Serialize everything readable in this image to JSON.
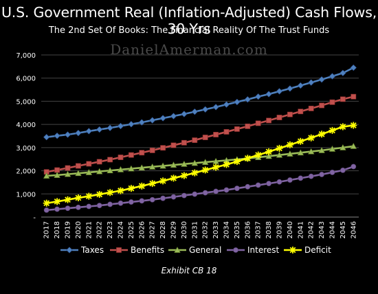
{
  "title": "U.S. Government Real (Inflation-Adjusted) Cash Flows, 30 Yrs",
  "subtitle": "The 2nd Set Of Books: The Financial Reality Of The Trust Funds",
  "watermark": "DanielAmerman.com",
  "exhibit": "Exhibit CB 18",
  "chart_data": {
    "type": "line",
    "title": "U.S. Government Real (Inflation-Adjusted) Cash Flows, 30 Yrs",
    "subtitle": "The 2nd Set Of Books: The Financial Reality Of The Trust Funds",
    "x": [
      "2017",
      "2018",
      "2019",
      "2020",
      "2021",
      "2022",
      "2023",
      "2024",
      "2025",
      "2026",
      "2027",
      "2028",
      "2029",
      "2030",
      "2031",
      "2032",
      "2033",
      "2034",
      "2035",
      "2036",
      "2037",
      "2038",
      "2039",
      "2040",
      "2041",
      "2042",
      "2043",
      "2044",
      "2045",
      "2046"
    ],
    "ylim": [
      0,
      7000
    ],
    "yticks": [
      0,
      1000,
      2000,
      3000,
      4000,
      5000,
      6000,
      7000
    ],
    "ytick_labels": [
      "-",
      "1,000",
      "2,000",
      "3,000",
      "4,000",
      "5,000",
      "6,000",
      "7,000"
    ],
    "grid": true,
    "legend_position": "bottom",
    "series": [
      {
        "name": "Taxes",
        "color": "#4f81bd",
        "marker": "diamond",
        "values": [
          3450,
          3510,
          3560,
          3630,
          3710,
          3780,
          3850,
          3930,
          4010,
          4090,
          4180,
          4270,
          4360,
          4450,
          4550,
          4650,
          4750,
          4860,
          4970,
          5080,
          5200,
          5310,
          5430,
          5550,
          5680,
          5810,
          5940,
          6080,
          6220,
          6450
        ]
      },
      {
        "name": "Benefits",
        "color": "#c0504d",
        "marker": "square",
        "values": [
          1950,
          2030,
          2120,
          2210,
          2300,
          2390,
          2480,
          2580,
          2680,
          2780,
          2880,
          2990,
          3100,
          3210,
          3320,
          3440,
          3560,
          3680,
          3800,
          3920,
          4050,
          4170,
          4300,
          4430,
          4560,
          4690,
          4820,
          4960,
          5090,
          5200
        ]
      },
      {
        "name": "General",
        "color": "#9bbb59",
        "marker": "triangle",
        "values": [
          1780,
          1810,
          1850,
          1890,
          1930,
          1970,
          2010,
          2050,
          2090,
          2130,
          2170,
          2210,
          2250,
          2290,
          2330,
          2370,
          2410,
          2450,
          2490,
          2530,
          2580,
          2630,
          2680,
          2730,
          2780,
          2830,
          2880,
          2940,
          3000,
          3060
        ]
      },
      {
        "name": "Interest",
        "color": "#8064a2",
        "marker": "circle",
        "values": [
          300,
          340,
          380,
          420,
          460,
          500,
          550,
          600,
          650,
          700,
          750,
          810,
          870,
          930,
          990,
          1050,
          1110,
          1170,
          1240,
          1310,
          1380,
          1450,
          1520,
          1600,
          1680,
          1760,
          1840,
          1930,
          2020,
          2180
        ]
      },
      {
        "name": "Deficit",
        "color": "#ffff00",
        "marker": "star",
        "values": [
          600,
          670,
          750,
          830,
          900,
          980,
          1060,
          1140,
          1240,
          1340,
          1450,
          1560,
          1680,
          1790,
          1910,
          2030,
          2150,
          2270,
          2400,
          2540,
          2680,
          2820,
          2970,
          3120,
          3270,
          3420,
          3580,
          3740,
          3900,
          3960
        ]
      }
    ]
  }
}
